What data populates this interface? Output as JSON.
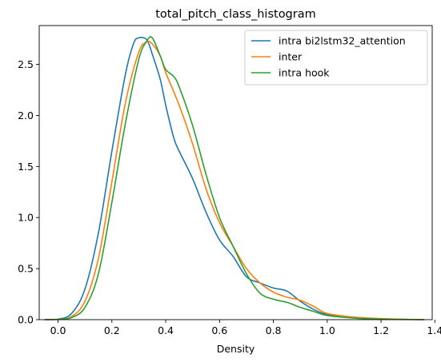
{
  "chart_data": {
    "type": "line",
    "title": "total_pitch_class_histogram",
    "xlabel": "Density",
    "ylabel": "",
    "xlim": [
      -0.07,
      1.39
    ],
    "ylim": [
      0,
      2.88
    ],
    "xticks": [
      0.0,
      0.2,
      0.4,
      0.6,
      0.8,
      1.0,
      1.2,
      1.4
    ],
    "xtick_labels": [
      "0.0",
      "0.2",
      "0.4",
      "0.6",
      "0.8",
      "1.0",
      "1.2",
      "1.4"
    ],
    "yticks": [
      0.0,
      0.5,
      1.0,
      1.5,
      2.0,
      2.5
    ],
    "ytick_labels": [
      "0.0",
      "0.5",
      "1.0",
      "1.5",
      "2.0",
      "2.5"
    ],
    "grid": false,
    "legend_position": "top-right",
    "series": [
      {
        "name": "intra bi2lstm32_attention",
        "color": "#1f77b4",
        "x": [
          -0.05,
          0.0,
          0.05,
          0.1,
          0.15,
          0.2,
          0.25,
          0.28,
          0.3,
          0.33,
          0.35,
          0.38,
          0.4,
          0.43,
          0.45,
          0.5,
          0.55,
          0.6,
          0.65,
          0.7,
          0.75,
          0.8,
          0.85,
          0.9,
          0.95,
          1.0,
          1.1,
          1.2,
          1.3,
          1.36
        ],
        "y": [
          0.0,
          0.005,
          0.06,
          0.3,
          0.85,
          1.65,
          2.4,
          2.7,
          2.76,
          2.74,
          2.6,
          2.35,
          2.1,
          1.78,
          1.65,
          1.38,
          1.05,
          0.78,
          0.62,
          0.42,
          0.36,
          0.31,
          0.28,
          0.18,
          0.1,
          0.05,
          0.02,
          0.008,
          0.002,
          0.0
        ]
      },
      {
        "name": "inter",
        "color": "#ff7f0e",
        "x": [
          -0.05,
          0.0,
          0.05,
          0.1,
          0.15,
          0.2,
          0.25,
          0.3,
          0.33,
          0.35,
          0.38,
          0.4,
          0.45,
          0.5,
          0.55,
          0.6,
          0.65,
          0.7,
          0.75,
          0.8,
          0.85,
          0.9,
          0.95,
          1.0,
          1.1,
          1.2,
          1.3,
          1.36
        ],
        "y": [
          0.0,
          0.003,
          0.03,
          0.18,
          0.6,
          1.35,
          2.12,
          2.62,
          2.72,
          2.7,
          2.58,
          2.42,
          2.1,
          1.72,
          1.28,
          0.95,
          0.72,
          0.5,
          0.36,
          0.27,
          0.22,
          0.19,
          0.13,
          0.06,
          0.025,
          0.01,
          0.003,
          0.0
        ]
      },
      {
        "name": "intra hook",
        "color": "#2ca02c",
        "x": [
          -0.05,
          0.0,
          0.05,
          0.1,
          0.15,
          0.2,
          0.25,
          0.3,
          0.33,
          0.35,
          0.38,
          0.4,
          0.43,
          0.45,
          0.5,
          0.55,
          0.6,
          0.65,
          0.7,
          0.75,
          0.8,
          0.85,
          0.9,
          0.95,
          1.0,
          1.1,
          1.2,
          1.3,
          1.36
        ],
        "y": [
          0.0,
          0.002,
          0.02,
          0.12,
          0.45,
          1.15,
          1.92,
          2.55,
          2.73,
          2.76,
          2.58,
          2.45,
          2.38,
          2.28,
          1.9,
          1.42,
          1.0,
          0.72,
          0.45,
          0.26,
          0.2,
          0.17,
          0.12,
          0.08,
          0.04,
          0.015,
          0.005,
          0.001,
          0.0
        ]
      }
    ]
  }
}
